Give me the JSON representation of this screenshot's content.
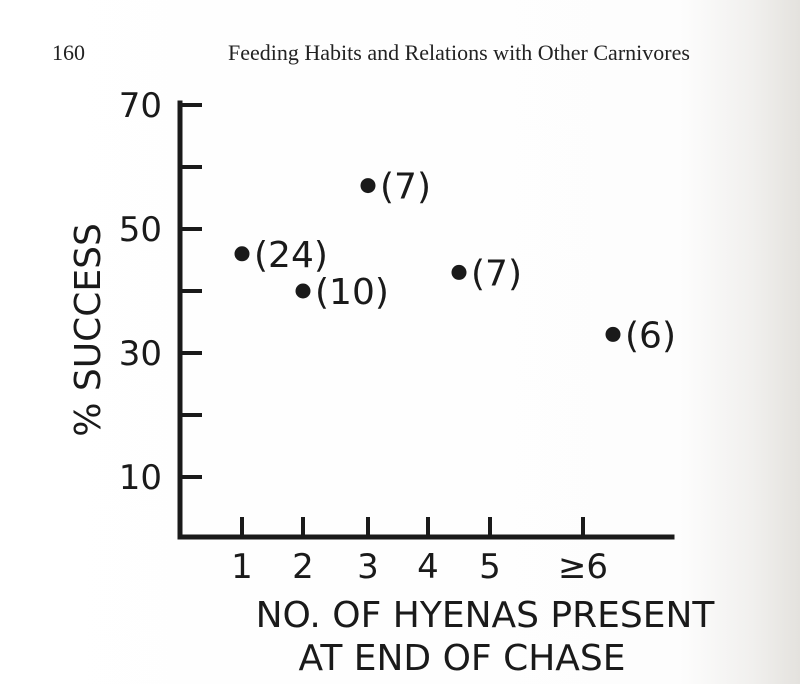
{
  "page": {
    "number": "160",
    "running_head": "Feeding Habits and Relations with Other Carnivores"
  },
  "chart_data": {
    "type": "scatter",
    "title": "",
    "ylabel": "% SUCCESS",
    "xlabel_lines": [
      "NO. OF HYENAS    PRESENT",
      "AT END OF CHASE"
    ],
    "x_categories": [
      "1",
      "2",
      "3",
      "4",
      "5",
      "≥6"
    ],
    "y_tick_labels": [
      "10",
      "30",
      "50",
      "70"
    ],
    "ylim": [
      0,
      70
    ],
    "points": [
      {
        "x": 1,
        "y": 46,
        "label": "(24)"
      },
      {
        "x": 2,
        "y": 40,
        "label": "(10)"
      },
      {
        "x": 3,
        "y": 57,
        "label": "(7)"
      },
      {
        "x": 4.5,
        "y": 43,
        "label": "(7)"
      },
      {
        "x": 6.5,
        "y": 33,
        "label": "(6)"
      }
    ],
    "grid": false
  }
}
